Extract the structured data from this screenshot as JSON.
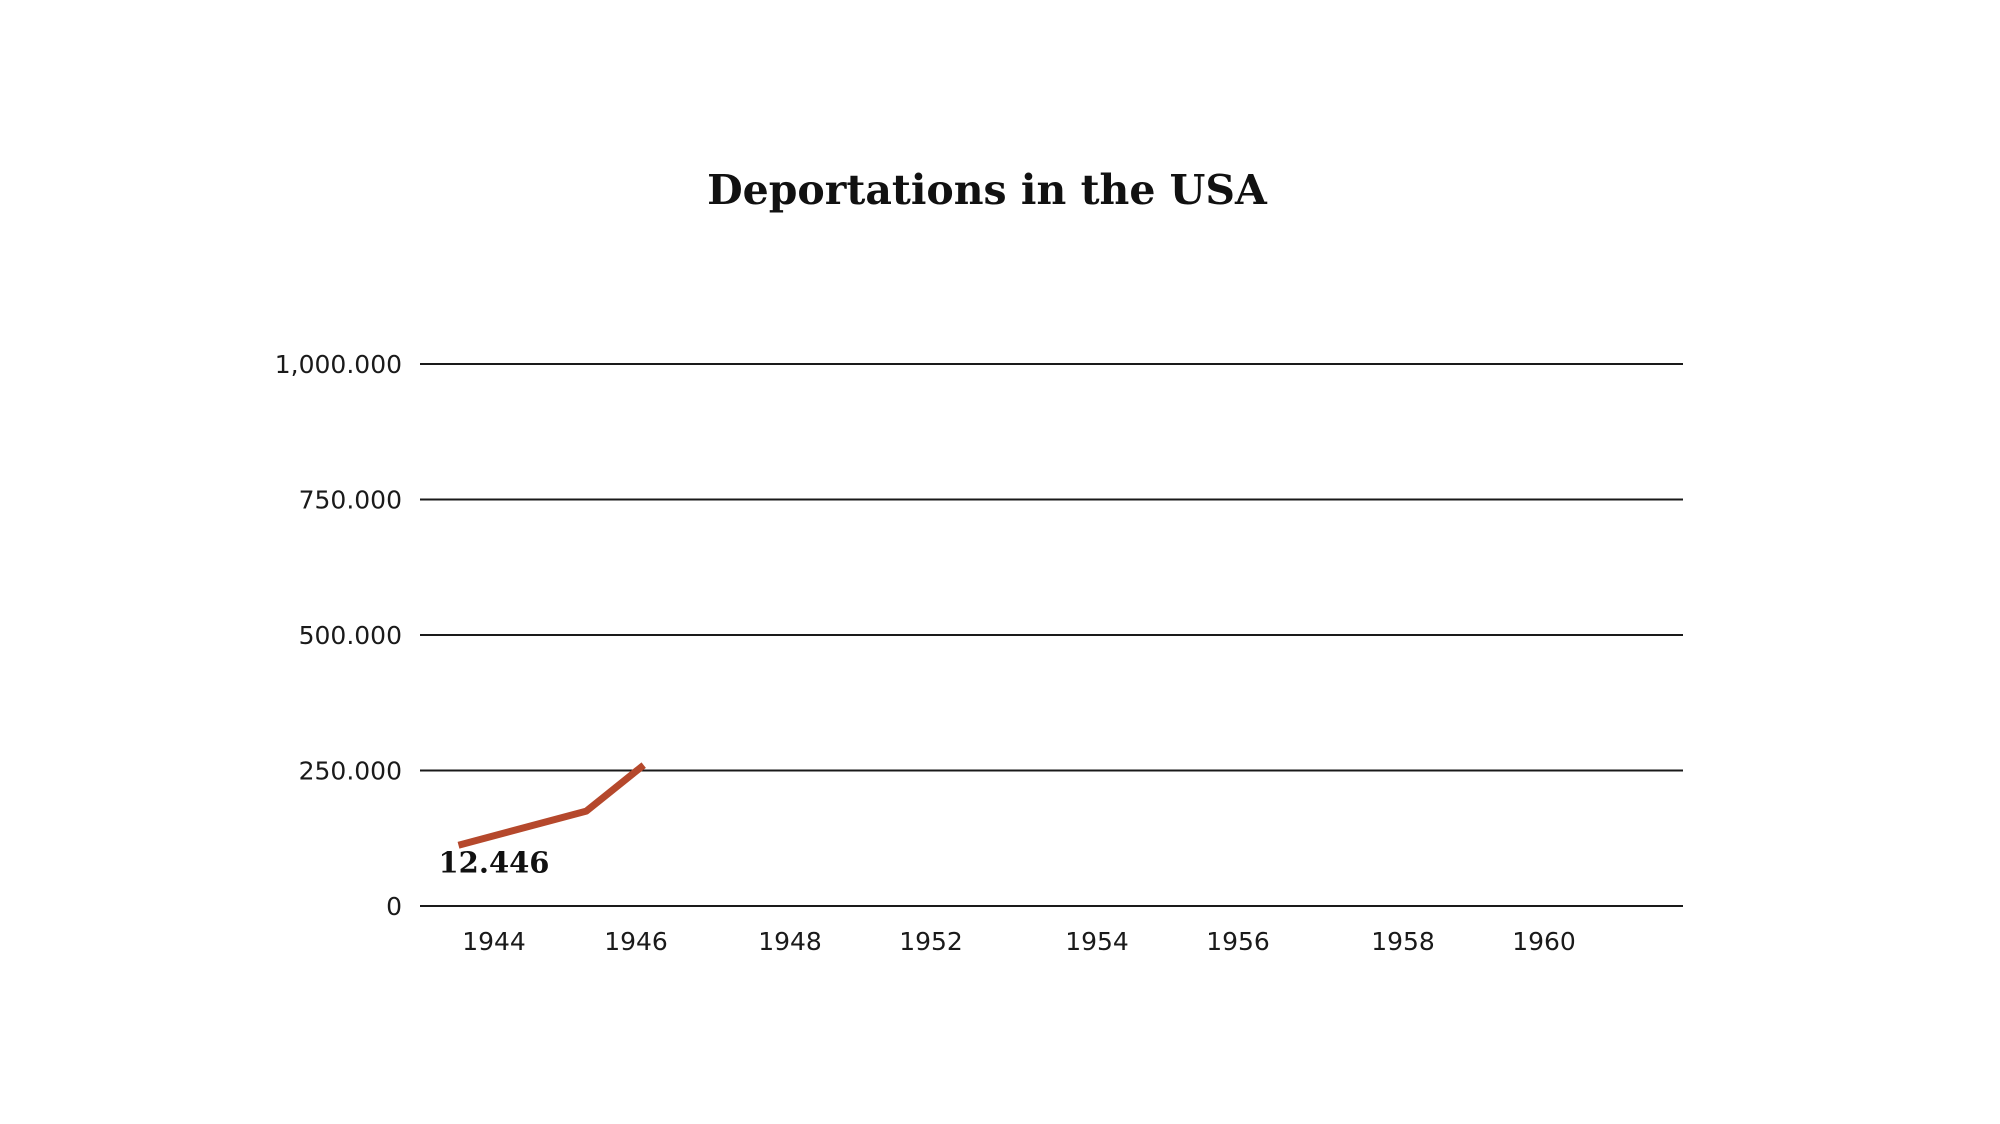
{
  "chart_data": {
    "type": "line",
    "title": "Deportations in the USA",
    "xlabel": "",
    "ylabel": "",
    "categories": [
      "1944",
      "1946",
      "1948",
      "1952",
      "1954",
      "1956",
      "1958",
      "1960"
    ],
    "y_ticks": [
      "0",
      "250.000",
      "500.000",
      "750.000",
      "1,000.000"
    ],
    "ylim": [
      0,
      1000000
    ],
    "grid": true,
    "legend": "none",
    "series": [
      {
        "name": "",
        "color": "#b5482c",
        "points": [
          {
            "x": 1943.5,
            "y": 112000
          },
          {
            "x": 1945.3,
            "y": 175000
          },
          {
            "x": 1946.1,
            "y": 260000
          }
        ]
      }
    ],
    "annotations": [
      {
        "text": "12.446",
        "x": 1944,
        "y": 112000
      }
    ]
  }
}
